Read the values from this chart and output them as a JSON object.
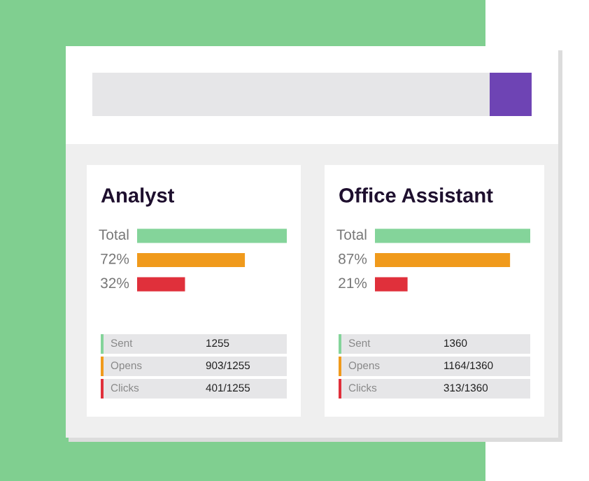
{
  "chart_data": [
    {
      "type": "bar",
      "orientation": "horizontal",
      "title": "Analyst",
      "categories": [
        null,
        null,
        null
      ],
      "values": [
        100,
        72,
        32
      ],
      "value_labels": [
        "Total",
        "72%",
        "32%"
      ],
      "colors": [
        "#84d49a",
        "#f09a1c",
        "#e0303b"
      ],
      "tick_labels": false,
      "annotations": [
        "Sent",
        "1255",
        "Opens",
        "903/1255",
        "Clicks",
        "401/1255"
      ]
    },
    {
      "type": "bar",
      "orientation": "horizontal",
      "title": "Office Assistant",
      "categories": [
        null,
        null,
        null
      ],
      "values": [
        100,
        87,
        21
      ],
      "value_labels": [
        "Total",
        "87%",
        "21%"
      ],
      "colors": [
        "#84d49a",
        "#f09a1c",
        "#e0303b"
      ],
      "tick_labels": false,
      "annotations": [
        "Sent",
        "1360",
        "Opens",
        "1164/1360",
        "Clicks",
        "313/1360"
      ]
    }
  ]
}
